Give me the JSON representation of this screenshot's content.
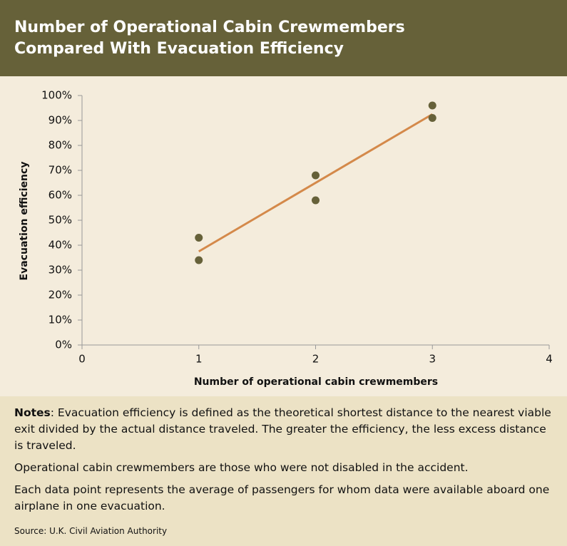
{
  "chart_data": {
    "type": "scatter",
    "title": [
      "Number of Operational Cabin Crewmembers",
      "Compared With Evacuation Efficiency"
    ],
    "x_label": "Number of operational cabin crewmembers",
    "y_label": "Evacuation efficiency",
    "series": [
      {
        "color": "#666139",
        "x": [
          1,
          1,
          2,
          2,
          3,
          3
        ],
        "values": [
          43,
          34,
          68,
          58,
          96,
          91
        ]
      }
    ],
    "trendline": {
      "color": "#d4894a",
      "x": [
        1,
        3
      ],
      "values": [
        37.5,
        92.5
      ]
    },
    "xlim": [
      0,
      4
    ],
    "xticks": [
      0,
      1,
      2,
      3,
      4
    ],
    "ylim": [
      0,
      100
    ],
    "yticks": [
      {
        "value": 0,
        "label": "0%"
      },
      {
        "value": 10,
        "label": "10%"
      },
      {
        "value": 20,
        "label": "20%"
      },
      {
        "value": 30,
        "label": "30%"
      },
      {
        "value": 40,
        "label": "40%"
      },
      {
        "value": 50,
        "label": "50%"
      },
      {
        "value": 60,
        "label": "60%"
      },
      {
        "value": 70,
        "label": "70%"
      },
      {
        "value": 80,
        "label": "80%"
      },
      {
        "value": 90,
        "label": "90%"
      },
      {
        "value": 100,
        "label": "100%"
      }
    ],
    "grid": false
  },
  "notes_label": "Notes",
  "notes": [
    ": Evacuation efficiency is defined as the theoretical shortest distance to the nearest viable exit divided by the actual distance traveled. The greater the efficiency, the less excess distance is traveled.",
    "Operational cabin crewmembers are those who were not disabled in the accident.",
    "Each data point represents the average of passengers for whom data were available aboard one airplane in one evacuation."
  ],
  "source": "Source: U.K. Civil Aviation Authority"
}
